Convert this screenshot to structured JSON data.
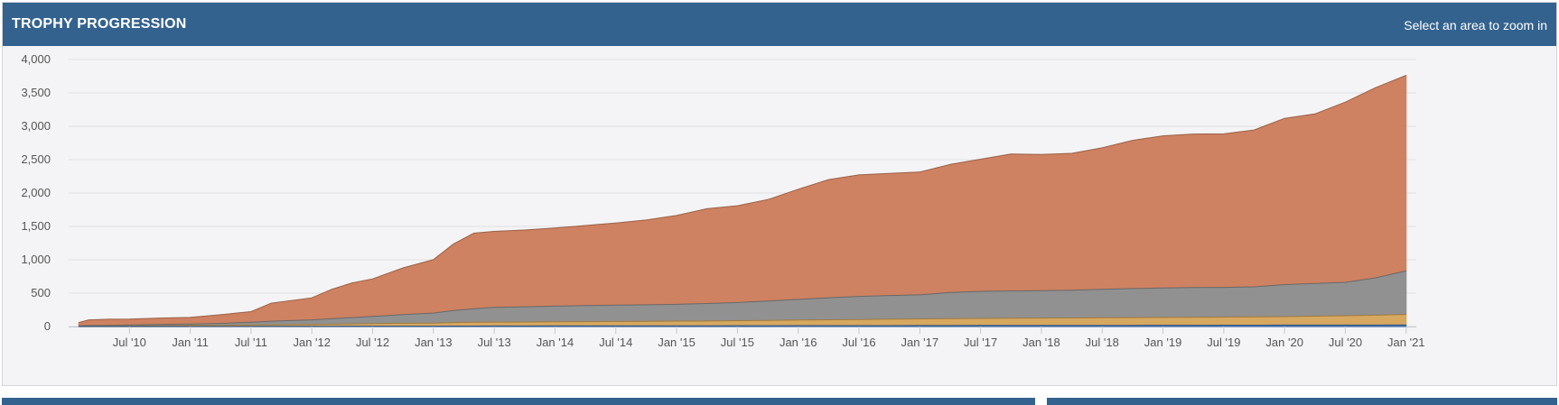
{
  "header": {
    "title": "TROPHY PROGRESSION",
    "hint": "Select an area to zoom in"
  },
  "chart_data": {
    "type": "area",
    "stacked": true,
    "xlabel": "",
    "ylabel": "",
    "ylim": [
      0,
      4000
    ],
    "grid": true,
    "y_ticks": [
      "0",
      "500",
      "1,000",
      "1,500",
      "2,000",
      "2,500",
      "3,000",
      "3,500",
      "4,000"
    ],
    "y_tick_values": [
      0,
      500,
      1000,
      1500,
      2000,
      2500,
      3000,
      3500,
      4000
    ],
    "x_ticks": [
      "Jul '10",
      "Jan '11",
      "Jul '11",
      "Jan '12",
      "Jul '12",
      "Jan '13",
      "Jul '13",
      "Jan '14",
      "Jul '14",
      "Jan '15",
      "Jul '15",
      "Jan '16",
      "Jul '16",
      "Jan '17",
      "Jul '17",
      "Jan '18",
      "Jul '18",
      "Jan '19",
      "Jul '19",
      "Jan '20",
      "Jul '20",
      "Jan '21"
    ],
    "x_tick_values": [
      "2010-07",
      "2011-01",
      "2011-07",
      "2012-01",
      "2012-07",
      "2013-01",
      "2013-07",
      "2014-01",
      "2014-07",
      "2015-01",
      "2015-07",
      "2016-01",
      "2016-07",
      "2017-01",
      "2017-07",
      "2018-01",
      "2018-07",
      "2019-01",
      "2019-07",
      "2020-01",
      "2020-07",
      "2021-01"
    ],
    "xlim": [
      "2010-01",
      "2021-02"
    ],
    "x": [
      "2010-02",
      "2010-03",
      "2010-05",
      "2010-07",
      "2010-10",
      "2011-01",
      "2011-04",
      "2011-07",
      "2011-09",
      "2012-01",
      "2012-03",
      "2012-05",
      "2012-07",
      "2012-10",
      "2013-01",
      "2013-03",
      "2013-05",
      "2013-07",
      "2013-10",
      "2014-01",
      "2014-04",
      "2014-07",
      "2014-10",
      "2015-01",
      "2015-04",
      "2015-07",
      "2015-10",
      "2016-01",
      "2016-04",
      "2016-07",
      "2016-10",
      "2017-01",
      "2017-04",
      "2017-07",
      "2017-10",
      "2018-01",
      "2018-04",
      "2018-07",
      "2018-10",
      "2019-01",
      "2019-04",
      "2019-07",
      "2019-10",
      "2020-01",
      "2020-04",
      "2020-07",
      "2020-10",
      "2021-01"
    ],
    "series": [
      {
        "color": "#3d6fb0",
        "values": [
          1,
          1,
          1,
          1,
          2,
          2,
          2,
          3,
          3,
          4,
          4,
          5,
          5,
          6,
          6,
          7,
          7,
          8,
          8,
          9,
          9,
          10,
          10,
          11,
          11,
          12,
          12,
          13,
          13,
          14,
          14,
          15,
          15,
          16,
          16,
          17,
          17,
          18,
          18,
          19,
          19,
          20,
          20,
          21,
          21,
          22,
          22,
          23
        ]
      },
      {
        "color": "#d6a457",
        "values": [
          4,
          6,
          8,
          10,
          12,
          15,
          17,
          20,
          22,
          26,
          30,
          34,
          38,
          42,
          46,
          52,
          56,
          58,
          60,
          62,
          64,
          66,
          68,
          70,
          72,
          76,
          80,
          84,
          88,
          92,
          96,
          100,
          104,
          106,
          108,
          110,
          112,
          114,
          116,
          118,
          120,
          122,
          124,
          128,
          134,
          140,
          148,
          160
        ]
      },
      {
        "color": "#8c8c8c",
        "values": [
          5,
          8,
          10,
          12,
          18,
          20,
          28,
          40,
          55,
          70,
          85,
          95,
          110,
          130,
          150,
          180,
          205,
          220,
          228,
          235,
          240,
          245,
          248,
          252,
          262,
          272,
          290,
          310,
          330,
          345,
          355,
          360,
          390,
          405,
          410,
          410,
          415,
          425,
          435,
          440,
          445,
          445,
          450,
          480,
          490,
          500,
          560,
          650
        ]
      },
      {
        "color": "#cd7c5a",
        "values": [
          50,
          85,
          90,
          88,
          95,
          100,
          130,
          160,
          270,
          330,
          440,
          520,
          560,
          700,
          800,
          1000,
          1130,
          1140,
          1150,
          1170,
          1200,
          1230,
          1270,
          1330,
          1420,
          1450,
          1520,
          1650,
          1770,
          1820,
          1830,
          1840,
          1920,
          1980,
          2050,
          2040,
          2050,
          2120,
          2220,
          2280,
          2300,
          2300,
          2350,
          2490,
          2540,
          2700,
          2850,
          2930
        ]
      }
    ]
  }
}
